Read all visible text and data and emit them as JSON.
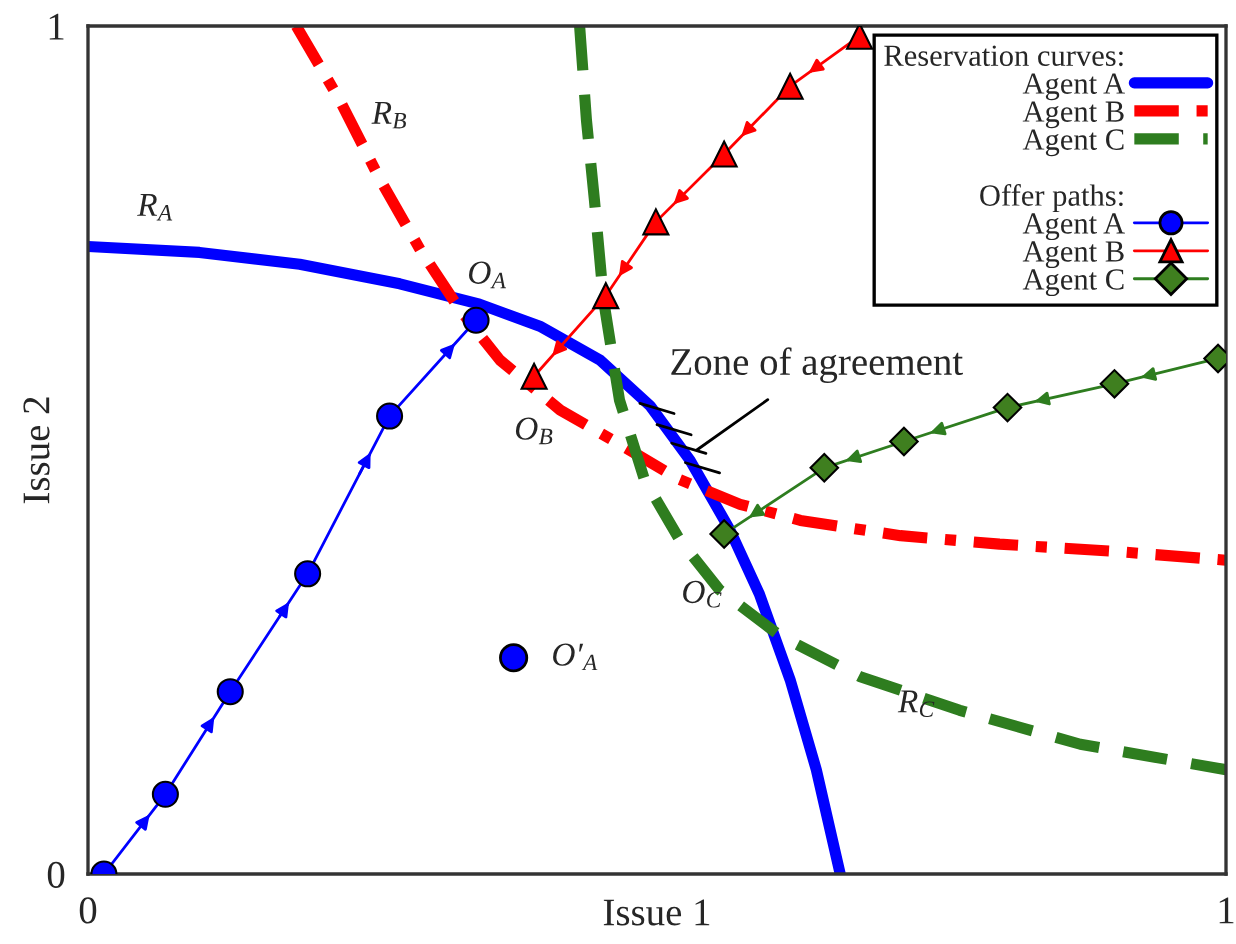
{
  "chart_data": {
    "type": "line",
    "xlabel": "Issue 1",
    "ylabel": "Issue 2",
    "xlim": [
      0,
      1
    ],
    "ylim": [
      0,
      1
    ],
    "xticks": [
      0,
      1
    ],
    "yticks": [
      0,
      1
    ],
    "legend": "top right",
    "legend_title": "Reservation curves:",
    "series": [
      {
        "name": "Agent A",
        "color": "#0000ff",
        "line_style": "solid",
        "marker": "none",
        "x": [
          0,
          0.098,
          0.186,
          0.274,
          0.344,
          0.397,
          0.45,
          0.494,
          0.529,
          0.564,
          0.59,
          0.617,
          0.64,
          0.661
        ],
        "values": [
          0.74,
          0.733,
          0.719,
          0.696,
          0.672,
          0.646,
          0.606,
          0.552,
          0.488,
          0.406,
          0.33,
          0.229,
          0.123,
          0
        ]
      },
      {
        "name": "Agent B",
        "color": "#ff0000",
        "line_style": "dashdot",
        "marker": "none",
        "x": [
          0.183,
          0.221,
          0.257,
          0.292,
          0.327,
          0.362,
          0.415,
          0.467,
          0.52,
          0.573,
          0.626,
          0.714,
          0.801,
          0.907,
          1
        ],
        "values": [
          1,
          0.913,
          0.818,
          0.736,
          0.665,
          0.606,
          0.547,
          0.507,
          0.465,
          0.436,
          0.417,
          0.399,
          0.389,
          0.38,
          0.37
        ]
      },
      {
        "name": "Agent C",
        "color": "#2e7d1f",
        "line_style": "dashed",
        "marker": "none",
        "x": [
          0.432,
          0.438,
          0.445,
          0.453,
          0.467,
          0.489,
          0.52,
          0.555,
          0.608,
          0.678,
          0.766,
          0.872,
          1
        ],
        "values": [
          1,
          0.889,
          0.795,
          0.677,
          0.559,
          0.465,
          0.394,
          0.335,
          0.281,
          0.233,
          0.193,
          0.153,
          0.123
        ]
      },
      {
        "name": "Agent A",
        "color": "#0000ff",
        "line_style": "solid",
        "marker": "circle",
        "x": [
          0.014,
          0.068,
          0.125,
          0.193,
          0.265,
          0.341
        ],
        "values": [
          0,
          0.094,
          0.215,
          0.354,
          0.54,
          0.653
        ]
      },
      {
        "name": "Agent B",
        "color": "#ff0000",
        "line_style": "solid",
        "marker": "triangle",
        "x": [
          0.678,
          0.617,
          0.559,
          0.499,
          0.455,
          0.392
        ],
        "values": [
          0.988,
          0.929,
          0.849,
          0.769,
          0.682,
          0.587
        ]
      },
      {
        "name": "Agent C",
        "color": "#2e7d1f",
        "line_style": "solid",
        "marker": "diamond",
        "x": [
          0.993,
          0.902,
          0.808,
          0.717,
          0.647,
          0.559
        ],
        "values": [
          0.608,
          0.578,
          0.55,
          0.51,
          0.479,
          0.401
        ]
      },
      {
        "type": "scatter",
        "color": "#0000ff",
        "marker": "circle",
        "x": [
          0.374
        ],
        "values": [
          0.255
        ]
      }
    ],
    "annotations": [
      "Offer paths:",
      {
        "text": "R$_{A}$",
        "x": 0.098,
        "y": 0.733
      },
      {
        "text": "R$_{B}$",
        "x": 0.243,
        "y": 0.894
      },
      {
        "text": "R$_{C}$",
        "x": 0.728,
        "y": 0.2
      },
      {
        "text": "O$_{A}$",
        "x": 0.341,
        "y": 0.653
      },
      {
        "text": "O$_{B}$",
        "x": 0.392,
        "y": 0.587
      },
      {
        "text": "O$_{C}$",
        "x": 0.559,
        "y": 0.401
      },
      {
        "text": "O′$_{A}$",
        "x": 0.374,
        "y": 0.255
      },
      {
        "text": "Zone of agreement",
        "x": 0.535,
        "y": 0.5
      }
    ]
  }
}
